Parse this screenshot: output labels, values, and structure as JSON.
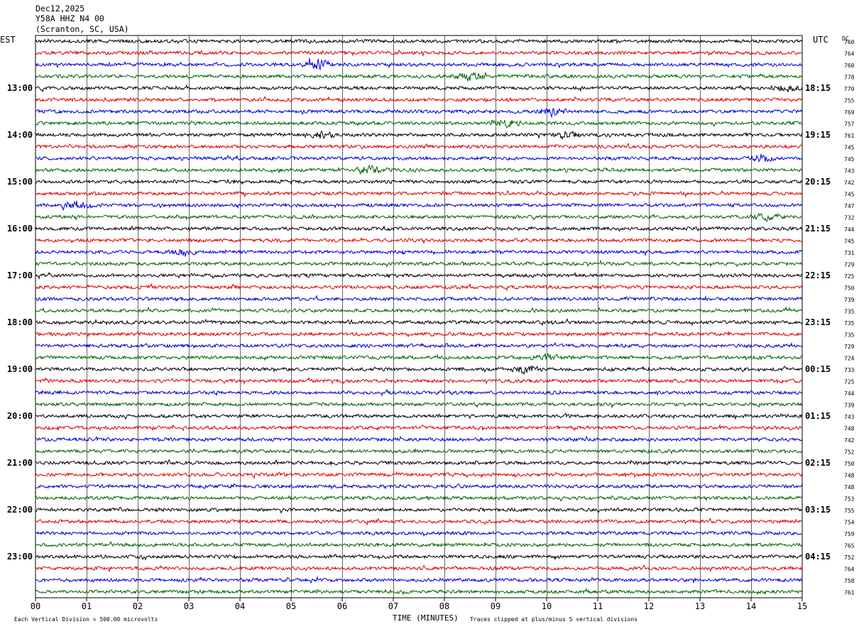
{
  "header": {
    "date": "Dec12,2025",
    "station": "Y58A HHZ N4 00",
    "location": "(Scranton, SC, USA)"
  },
  "labels": {
    "left_timezone": "EST",
    "right_timezone": "UTC",
    "dc_header": "DC"
  },
  "footer": {
    "scale_note": "Each Vertical Division =  500.00 microvolts",
    "xlabel": "TIME (MINUTES)",
    "clip_note": "Traces clipped at plus/minus 5 vertical divisions"
  },
  "chart_data": {
    "type": "line",
    "title": "Dec12,2025 Y58A HHZ N4 00 (Scranton, SC, USA)",
    "xlabel": "TIME (MINUTES)",
    "xlim": [
      0,
      15
    ],
    "x_ticks": [
      "00",
      "01",
      "02",
      "03",
      "04",
      "05",
      "06",
      "07",
      "08",
      "09",
      "10",
      "11",
      "12",
      "13",
      "14",
      "15"
    ],
    "grid": true,
    "trace_colors": [
      "#000000",
      "#e00000",
      "#0000d0",
      "#006400"
    ],
    "trace_count": 48,
    "left_hour_labels": [
      {
        "trace": 4,
        "label": "13:00"
      },
      {
        "trace": 8,
        "label": "14:00"
      },
      {
        "trace": 12,
        "label": "15:00"
      },
      {
        "trace": 16,
        "label": "16:00"
      },
      {
        "trace": 20,
        "label": "17:00"
      },
      {
        "trace": 24,
        "label": "18:00"
      },
      {
        "trace": 28,
        "label": "19:00"
      },
      {
        "trace": 32,
        "label": "20:00"
      },
      {
        "trace": 36,
        "label": "21:00"
      },
      {
        "trace": 40,
        "label": "22:00"
      },
      {
        "trace": 44,
        "label": "23:00"
      }
    ],
    "right_hour_labels": [
      {
        "trace": 4,
        "label": "18:15"
      },
      {
        "trace": 8,
        "label": "19:15"
      },
      {
        "trace": 12,
        "label": "20:15"
      },
      {
        "trace": 16,
        "label": "21:15"
      },
      {
        "trace": 20,
        "label": "22:15"
      },
      {
        "trace": 24,
        "label": "23:15"
      },
      {
        "trace": 28,
        "label": "00:15"
      },
      {
        "trace": 32,
        "label": "01:15"
      },
      {
        "trace": 36,
        "label": "02:15"
      },
      {
        "trace": 40,
        "label": "03:15"
      },
      {
        "trace": 44,
        "label": "04:15"
      }
    ],
    "dc_offsets": [
      "760",
      "764",
      "760",
      "778",
      "770",
      "755",
      "769",
      "757",
      "761",
      "745",
      "745",
      "743",
      "742",
      "745",
      "747",
      "732",
      "744",
      "745",
      "731",
      "729",
      "725",
      "750",
      "739",
      "735",
      "735",
      "735",
      "729",
      "724",
      "733",
      "725",
      "744",
      "739",
      "743",
      "748",
      "742",
      "752",
      "750",
      "748",
      "748",
      "753",
      "755",
      "754",
      "759",
      "765",
      "752",
      "764",
      "758",
      "761"
    ],
    "events": [
      {
        "trace": 2,
        "minute": 5.5,
        "amplitude": 3.0
      },
      {
        "trace": 3,
        "minute": 8.5,
        "amplitude": 1.8
      },
      {
        "trace": 4,
        "minute": 14.7,
        "amplitude": 1.5
      },
      {
        "trace": 6,
        "minute": 10.1,
        "amplitude": 1.8
      },
      {
        "trace": 7,
        "minute": 9.2,
        "amplitude": 1.8
      },
      {
        "trace": 8,
        "minute": 5.6,
        "amplitude": 1.6
      },
      {
        "trace": 8,
        "minute": 10.4,
        "amplitude": 1.8
      },
      {
        "trace": 10,
        "minute": 14.2,
        "amplitude": 1.5
      },
      {
        "trace": 11,
        "minute": 6.5,
        "amplitude": 1.8
      },
      {
        "trace": 14,
        "minute": 0.8,
        "amplitude": 2.0
      },
      {
        "trace": 15,
        "minute": 14.3,
        "amplitude": 1.6
      },
      {
        "trace": 18,
        "minute": 2.9,
        "amplitude": 1.4
      },
      {
        "trace": 27,
        "minute": 10.0,
        "amplitude": 1.5
      },
      {
        "trace": 28,
        "minute": 9.6,
        "amplitude": 2.5
      }
    ]
  }
}
